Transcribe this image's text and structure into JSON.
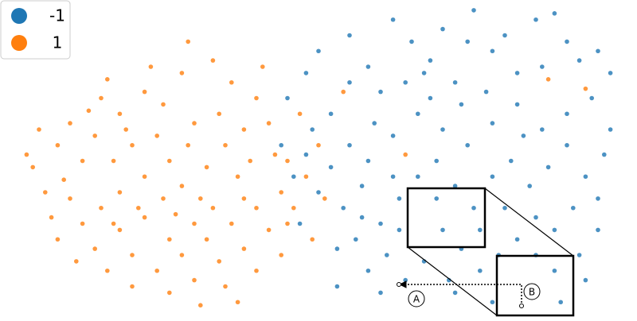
{
  "chart_data": {
    "type": "scatter",
    "xlim": [
      0,
      100
    ],
    "ylim": [
      0,
      100
    ],
    "legend_position": "upper left",
    "annotations": [
      "A",
      "B"
    ],
    "series": [
      {
        "name": "-1",
        "color": "#1f77b4",
        "x": [
          45,
          48,
          50,
          52,
          55,
          58,
          60,
          62,
          65,
          68,
          70,
          72,
          75,
          78,
          80,
          82,
          85,
          88,
          90,
          92,
          95,
          97,
          94,
          90,
          86,
          82,
          78,
          74,
          70,
          66,
          62,
          58,
          55,
          52,
          48,
          46,
          50,
          54,
          57,
          60,
          63,
          66,
          69,
          72,
          75,
          78,
          81,
          84,
          87,
          90,
          93,
          96,
          95,
          91,
          88,
          85,
          82,
          79,
          76,
          73,
          70,
          67,
          64,
          61,
          58,
          56,
          53,
          60,
          66,
          72,
          78,
          84,
          88,
          92,
          95,
          97,
          55,
          59,
          64,
          68,
          73,
          77,
          83,
          86,
          74,
          67,
          62,
          85,
          80,
          71,
          57,
          49,
          44,
          47,
          53,
          89,
          93,
          76,
          69,
          63
        ],
        "y": [
          70,
          78,
          85,
          65,
          90,
          80,
          72,
          95,
          88,
          82,
          92,
          75,
          98,
          85,
          90,
          78,
          95,
          97,
          88,
          82,
          85,
          78,
          70,
          65,
          60,
          68,
          62,
          55,
          60,
          65,
          58,
          50,
          55,
          48,
          52,
          45,
          40,
          35,
          42,
          30,
          38,
          45,
          50,
          42,
          35,
          45,
          50,
          42,
          48,
          55,
          45,
          52,
          38,
          35,
          28,
          32,
          25,
          20,
          15,
          22,
          28,
          18,
          12,
          20,
          15,
          25,
          22,
          8,
          5,
          8,
          5,
          10,
          15,
          20,
          28,
          60,
          75,
          62,
          75,
          70,
          68,
          72,
          58,
          80,
          88,
          78,
          45,
          20,
          35,
          12,
          32,
          60,
          55,
          30,
          10,
          5,
          12,
          28,
          38,
          28
        ]
      },
      {
        "name": "1",
        "color": "#ff7f0e",
        "x": [
          5,
          8,
          4,
          10,
          12,
          9,
          15,
          18,
          14,
          20,
          22,
          25,
          28,
          30,
          26,
          22,
          18,
          15,
          12,
          10,
          8,
          14,
          18,
          22,
          25,
          28,
          32,
          35,
          38,
          40,
          36,
          33,
          42,
          45,
          44,
          40,
          36,
          32,
          28,
          24,
          20,
          26,
          30,
          34,
          38,
          42,
          46,
          48,
          50,
          47,
          30,
          27,
          20,
          16,
          35,
          40,
          44,
          11,
          6,
          7,
          17,
          24,
          31,
          37,
          43,
          29,
          19,
          13,
          34,
          39,
          26,
          33,
          49,
          51,
          23,
          16,
          41,
          29,
          3,
          37,
          31,
          21,
          17,
          38,
          45,
          54,
          87,
          93,
          64
        ],
        "y": [
          60,
          55,
          48,
          62,
          50,
          44,
          70,
          65,
          58,
          55,
          72,
          68,
          78,
          62,
          50,
          45,
          40,
          35,
          30,
          38,
          25,
          22,
          28,
          32,
          38,
          42,
          48,
          55,
          60,
          70,
          75,
          82,
          62,
          50,
          40,
          35,
          30,
          25,
          20,
          15,
          10,
          8,
          12,
          18,
          22,
          28,
          35,
          45,
          55,
          65,
          30,
          33,
          20,
          15,
          10,
          15,
          20,
          18,
          40,
          32,
          50,
          58,
          38,
          45,
          52,
          55,
          60,
          66,
          65,
          50,
          25,
          35,
          25,
          38,
          80,
          76,
          80,
          88,
          52,
          5,
          4,
          35,
          30,
          38,
          30,
          72,
          76,
          73,
          52
        ]
      }
    ]
  }
}
